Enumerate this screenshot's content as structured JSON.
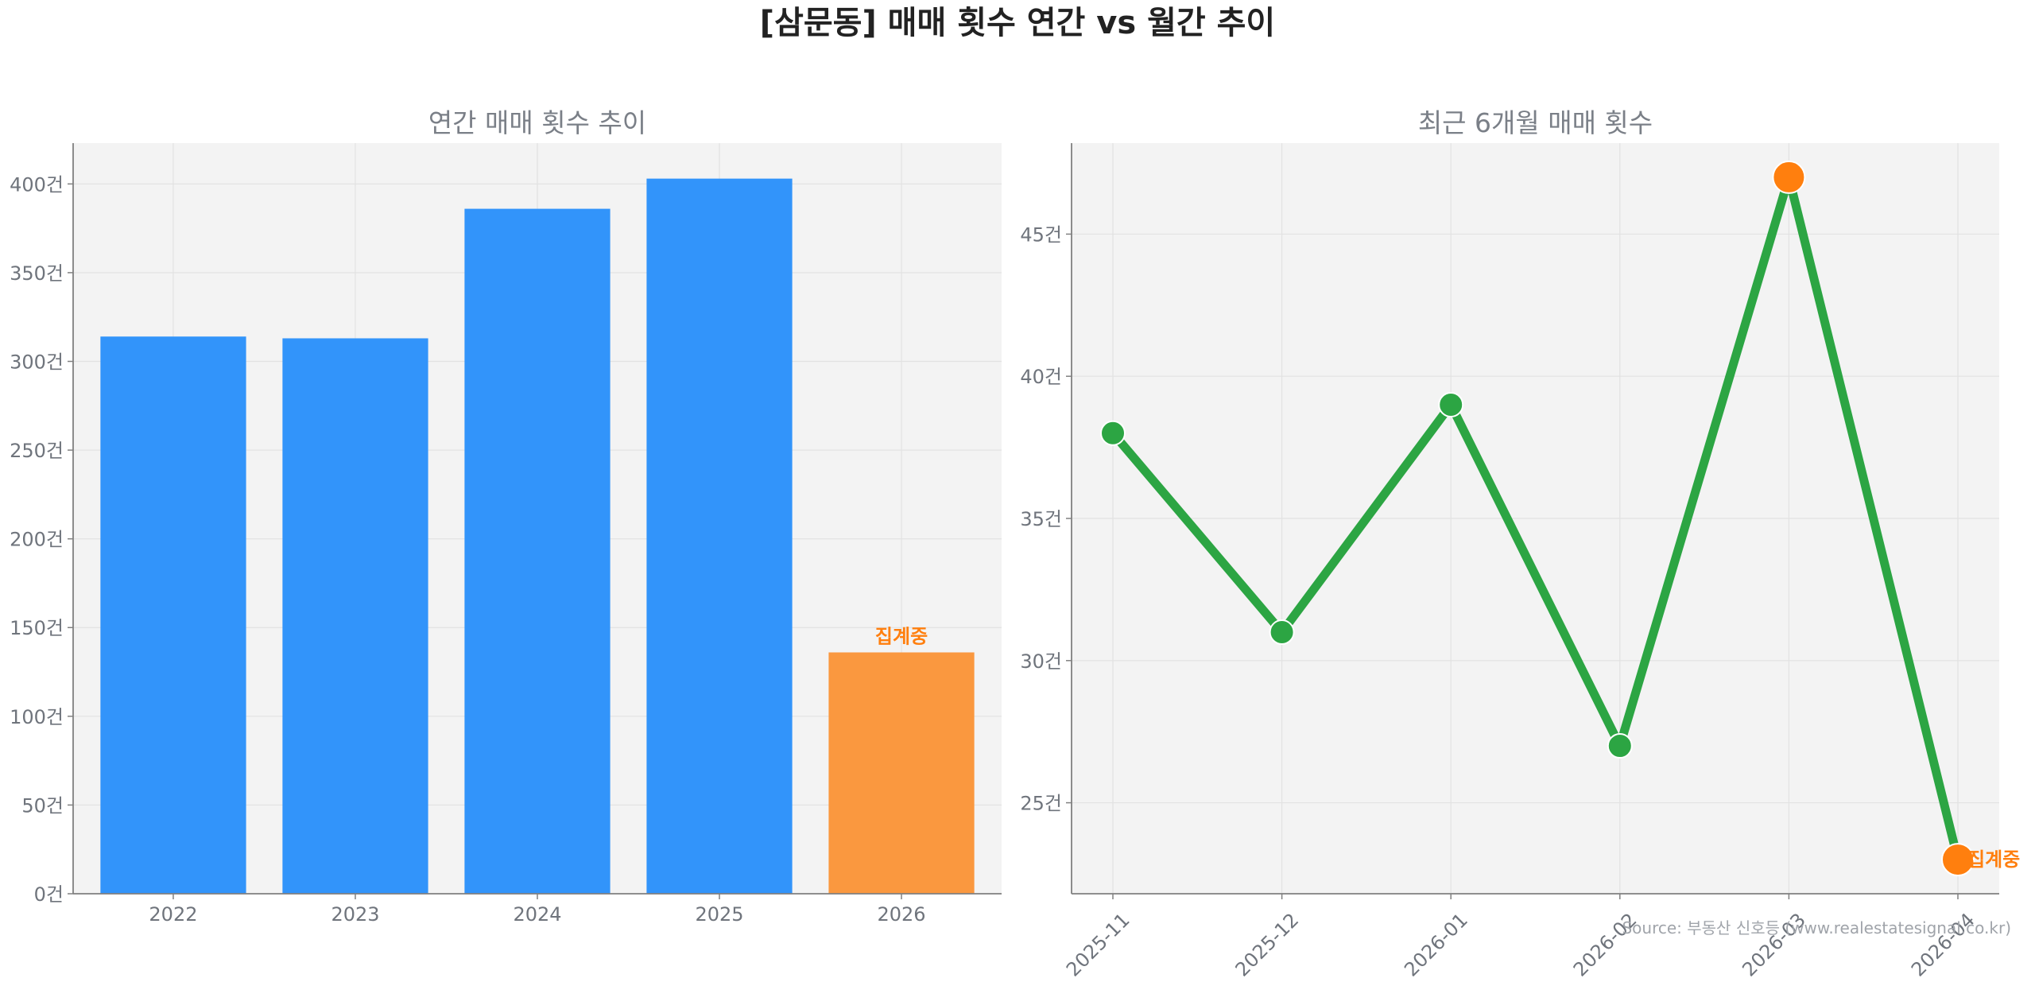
{
  "title": "[삼문동] 매매 횟수 연간 vs 월간 추이",
  "source": "Source: 부동산 신호등 (www.realestatesignal.co.kr)",
  "colors": {
    "bar": "#3294fa",
    "bar_current": "#fa983f",
    "line": "#2ca543",
    "point_highlight": "#ff7f0e",
    "panel_bg": "#f3f3f3",
    "grid": "#e2e2e2",
    "axis": "#808080"
  },
  "chart_data": [
    {
      "type": "bar",
      "title": "연간 매매 횟수 추이",
      "categories": [
        "2022",
        "2023",
        "2024",
        "2025",
        "2026"
      ],
      "values": [
        314,
        313,
        386,
        403,
        136
      ],
      "ylim": [
        0,
        423
      ],
      "yticks": [
        0,
        50,
        100,
        150,
        200,
        250,
        300,
        350,
        400
      ],
      "ytick_labels": [
        "0건",
        "50건",
        "100건",
        "150건",
        "200건",
        "250건",
        "300건",
        "350건",
        "400건"
      ],
      "annotation": {
        "category": "2026",
        "text": "집계중"
      },
      "grid": true
    },
    {
      "type": "line",
      "title": "최근 6개월 매매 횟수",
      "x": [
        "2025-11",
        "2025-12",
        "2026-01",
        "2026-02",
        "2026-03",
        "2026-04"
      ],
      "values": [
        38,
        31,
        39,
        27,
        47,
        23
      ],
      "ylim": [
        21.8,
        48.2
      ],
      "yticks": [
        25,
        30,
        35,
        40,
        45
      ],
      "ytick_labels": [
        "25건",
        "30건",
        "35건",
        "40건",
        "45건"
      ],
      "highlight_points": [
        "2026-03",
        "2026-04"
      ],
      "annotation": {
        "x": "2026-04",
        "text": "집계중"
      },
      "grid": true
    }
  ]
}
